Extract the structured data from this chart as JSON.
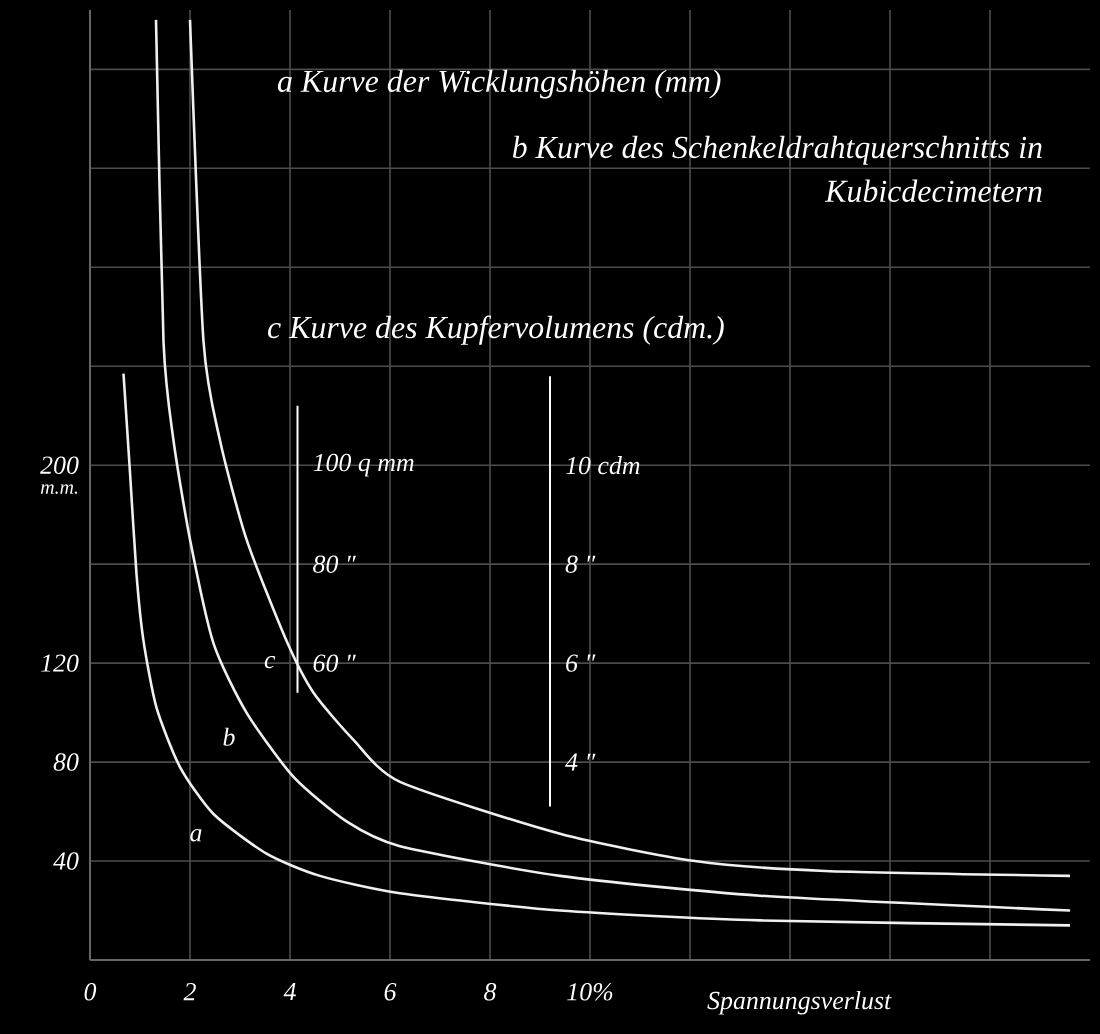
{
  "chart_data": {
    "type": "line",
    "annotations": [
      "a Kurve der Wicklungshöhen (mm)",
      "b Kurve des Schenkeldrahtquerschnitts in Kubicdecimetern",
      "c Kurve des Kupfervolumens (cdm.)"
    ],
    "xlabel": "Spannungsverlust",
    "ylabel": "m.m.",
    "xlim": [
      0,
      20
    ],
    "xticks": [
      0,
      2,
      4,
      6,
      8,
      {
        "value": 10,
        "label": "10%"
      },
      {
        "value": 12,
        "label": null
      },
      {
        "value": 14,
        "label": null
      },
      {
        "value": 16,
        "label": null
      },
      {
        "value": 18,
        "label": null
      }
    ],
    "ylim": [
      0,
      384
    ],
    "yticks": [
      40,
      80,
      120,
      {
        "value": 160,
        "label": null
      },
      200,
      {
        "value": 240,
        "label": null
      },
      {
        "value": 280,
        "label": null
      },
      {
        "value": 320,
        "label": null
      },
      {
        "value": 360,
        "label": null
      }
    ],
    "y2lim": [
      0,
      192
    ],
    "y2ticks": [
      {
        "value": 60,
        "label": "60 ″"
      },
      {
        "value": 80,
        "label": "80 ″"
      },
      {
        "value": 100,
        "label": "100 q mm"
      }
    ],
    "y3lim": [
      0,
      19.2
    ],
    "y3ticks": [
      {
        "value": 4,
        "label": "4 ″"
      },
      {
        "value": 6,
        "label": "6 ″"
      },
      {
        "value": 8,
        "label": "8 ″"
      },
      {
        "value": 10,
        "label": "10 cdm"
      }
    ],
    "grid": true,
    "series": [
      {
        "name": "a",
        "color": "#f0f0f0",
        "x": [
          0.67,
          0.8,
          0.93,
          1.07,
          1.33,
          1.8,
          2.47,
          3.53,
          4.6,
          6.2,
          9.4,
          13.4,
          19.6
        ],
        "values": [
          237,
          197,
          156,
          129,
          102,
          78,
          59,
          43,
          34,
          27,
          20,
          16,
          14
        ]
      },
      {
        "name": "b",
        "color": "#f0f0f0",
        "axis": "y2",
        "x": [
          1.32,
          1.47,
          1.67,
          2.0,
          2.47,
          3.13,
          4.07,
          5.13,
          6.2,
          9.4,
          13.4,
          19.6
        ],
        "values": [
          190,
          125,
          105,
          85,
          64,
          50,
          37,
          28,
          23,
          17,
          13,
          10
        ]
      },
      {
        "name": "c",
        "color": "#f0f0f0",
        "axis": "y3",
        "x": [
          2.0,
          2.27,
          2.6,
          3.13,
          3.93,
          4.47,
          5.27,
          6.2,
          9.4,
          12.1,
          14.7,
          19.6
        ],
        "values": [
          19,
          12.5,
          10.5,
          8.5,
          6.45,
          5.4,
          4.45,
          3.6,
          2.55,
          2.0,
          1.8,
          1.7
        ]
      }
    ]
  }
}
